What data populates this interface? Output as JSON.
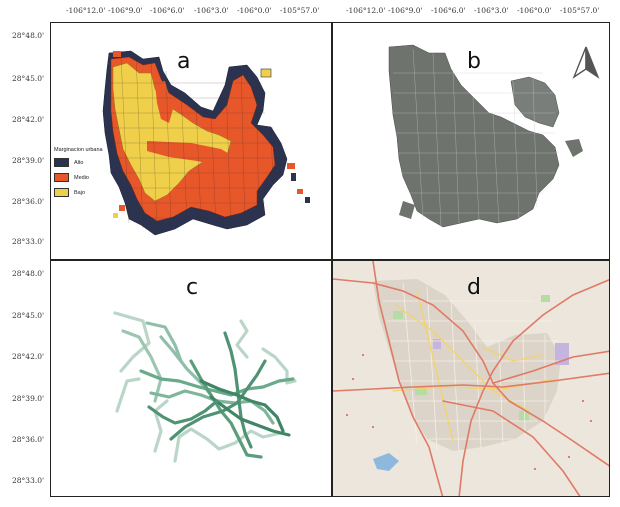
{
  "x_ticks": [
    "-106°12.0'",
    "-106°9.0'",
    "-106°6.0'",
    "-106°3.0'",
    "-106°0.0'",
    "-105°57.0'"
  ],
  "y_ticks": [
    "28°48.0'",
    "28°45.0'",
    "28°42.0'",
    "28°39.0'",
    "28°36.0'",
    "28°33.0'"
  ],
  "panels": {
    "a": {
      "label": "a"
    },
    "b": {
      "label": "b"
    },
    "c": {
      "label": "c"
    },
    "d": {
      "label": "d"
    }
  },
  "legend": {
    "title": "Marginacion urbana",
    "items": [
      {
        "label": "Alto",
        "color": "#2b3350"
      },
      {
        "label": "Medio",
        "color": "#e8572a"
      },
      {
        "label": "Bajo",
        "color": "#f0d04a"
      }
    ]
  },
  "icons": {
    "north_arrow": "north-arrow-icon"
  }
}
